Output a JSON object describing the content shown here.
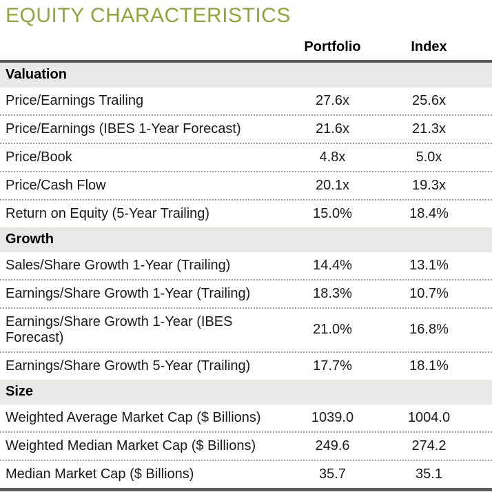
{
  "title": "EQUITY CHARACTERISTICS",
  "colors": {
    "title_green": "#8fa63a",
    "rule_dark_gray": "#58595b",
    "section_bg_gray": "#e8e8e7",
    "dotted_separator": "#9b9b9b",
    "text": "#1a1a1a"
  },
  "table": {
    "columns": {
      "portfolio": "Portfolio",
      "index": "Index"
    },
    "sections": [
      {
        "name": "Valuation",
        "rows": [
          {
            "label": "Price/Earnings Trailing",
            "portfolio": "27.6x",
            "index": "25.6x"
          },
          {
            "label": "Price/Earnings (IBES 1-Year Forecast)",
            "portfolio": "21.6x",
            "index": "21.3x"
          },
          {
            "label": "Price/Book",
            "portfolio": "4.8x",
            "index": "5.0x"
          },
          {
            "label": "Price/Cash Flow",
            "portfolio": "20.1x",
            "index": "19.3x"
          },
          {
            "label": "Return on Equity (5-Year Trailing)",
            "portfolio": "15.0%",
            "index": "18.4%"
          }
        ]
      },
      {
        "name": "Growth",
        "rows": [
          {
            "label": "Sales/Share Growth 1-Year (Trailing)",
            "portfolio": "14.4%",
            "index": "13.1%"
          },
          {
            "label": "Earnings/Share Growth 1-Year (Trailing)",
            "portfolio": "18.3%",
            "index": "10.7%"
          },
          {
            "label": "Earnings/Share Growth 1-Year (IBES Forecast)",
            "portfolio": "21.0%",
            "index": "16.8%"
          },
          {
            "label": "Earnings/Share Growth 5-Year (Trailing)",
            "portfolio": "17.7%",
            "index": "18.1%"
          }
        ]
      },
      {
        "name": "Size",
        "rows": [
          {
            "label": "Weighted Average Market Cap ($ Billions)",
            "portfolio": "1039.0",
            "index": "1004.0"
          },
          {
            "label": "Weighted Median Market Cap ($ Billions)",
            "portfolio": "249.6",
            "index": "274.2"
          },
          {
            "label": "Median Market Cap ($ Billions)",
            "portfolio": "35.7",
            "index": "35.1"
          }
        ]
      }
    ]
  }
}
